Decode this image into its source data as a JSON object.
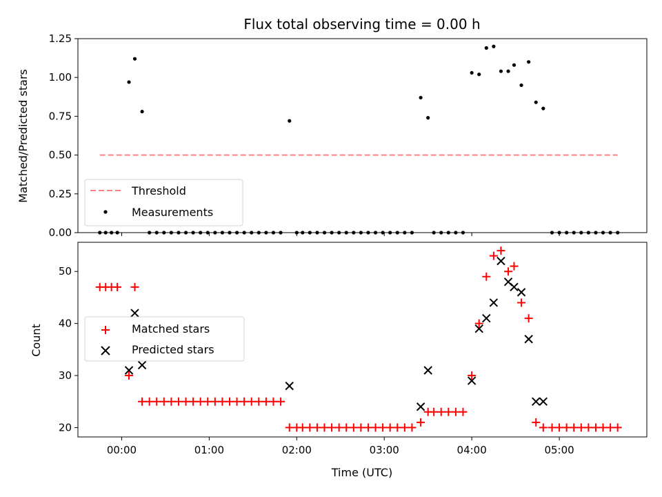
{
  "chart_data": [
    {
      "type": "scatter",
      "title": "Flux total observing time = 0.00 h",
      "xlabel": "",
      "ylabel": "Matched/Predicted stars",
      "ylim": [
        0,
        1.25
      ],
      "yticks": [
        0.0,
        0.25,
        0.5,
        0.75,
        1.0,
        1.25
      ],
      "ytick_labels": [
        "0.00",
        "0.25",
        "0.50",
        "0.75",
        "1.00",
        "1.25"
      ],
      "xlim": [
        "23:30",
        "06:00"
      ],
      "xticks": [
        "00:00",
        "01:00",
        "02:00",
        "03:00",
        "04:00",
        "05:00"
      ],
      "legend_position": "lower-left",
      "threshold": {
        "name": "Threshold",
        "color": "#ff7f7f",
        "style": "dashed",
        "y": 0.5,
        "x_range": [
          "23:45",
          "05:40"
        ]
      },
      "series": [
        {
          "name": "Measurements",
          "color": "#000000",
          "marker": "dot",
          "points": [
            [
              "23:45",
              0
            ],
            [
              "23:49",
              0
            ],
            [
              "23:53",
              0
            ],
            [
              "23:57",
              0
            ],
            [
              "00:05",
              0.97
            ],
            [
              "00:09",
              1.12
            ],
            [
              "00:14",
              0.78
            ],
            [
              "00:19",
              0
            ],
            [
              "00:24",
              0
            ],
            [
              "00:29",
              0
            ],
            [
              "00:34",
              0
            ],
            [
              "00:39",
              0
            ],
            [
              "00:44",
              0
            ],
            [
              "00:49",
              0
            ],
            [
              "00:54",
              0
            ],
            [
              "00:59",
              0
            ],
            [
              "01:04",
              0
            ],
            [
              "01:09",
              0
            ],
            [
              "01:14",
              0
            ],
            [
              "01:19",
              0
            ],
            [
              "01:24",
              0
            ],
            [
              "01:29",
              0
            ],
            [
              "01:34",
              0
            ],
            [
              "01:39",
              0
            ],
            [
              "01:44",
              0
            ],
            [
              "01:49",
              0
            ],
            [
              "01:55",
              0.72
            ],
            [
              "02:00",
              0
            ],
            [
              "02:04",
              0
            ],
            [
              "02:09",
              0
            ],
            [
              "02:14",
              0
            ],
            [
              "02:19",
              0
            ],
            [
              "02:24",
              0
            ],
            [
              "02:29",
              0
            ],
            [
              "02:34",
              0
            ],
            [
              "02:39",
              0
            ],
            [
              "02:44",
              0
            ],
            [
              "02:49",
              0
            ],
            [
              "02:54",
              0
            ],
            [
              "02:59",
              0
            ],
            [
              "03:04",
              0
            ],
            [
              "03:09",
              0
            ],
            [
              "03:14",
              0
            ],
            [
              "03:19",
              0
            ],
            [
              "03:25",
              0.87
            ],
            [
              "03:30",
              0.74
            ],
            [
              "03:34",
              0
            ],
            [
              "03:39",
              0
            ],
            [
              "03:44",
              0
            ],
            [
              "03:49",
              0
            ],
            [
              "03:54",
              0
            ],
            [
              "04:00",
              1.03
            ],
            [
              "04:05",
              1.02
            ],
            [
              "04:10",
              1.19
            ],
            [
              "04:15",
              1.2
            ],
            [
              "04:20",
              1.04
            ],
            [
              "04:25",
              1.04
            ],
            [
              "04:29",
              1.08
            ],
            [
              "04:34",
              0.95
            ],
            [
              "04:39",
              1.1
            ],
            [
              "04:44",
              0.84
            ],
            [
              "04:49",
              0.8
            ],
            [
              "04:55",
              0
            ],
            [
              "05:00",
              0
            ],
            [
              "05:05",
              0
            ],
            [
              "05:10",
              0
            ],
            [
              "05:15",
              0
            ],
            [
              "05:20",
              0
            ],
            [
              "05:25",
              0
            ],
            [
              "05:30",
              0
            ],
            [
              "05:35",
              0
            ],
            [
              "05:40",
              0
            ]
          ]
        }
      ]
    },
    {
      "type": "scatter",
      "title": "",
      "xlabel": "Time (UTC)",
      "ylabel": "Count",
      "ylim": [
        18.2,
        55.6
      ],
      "yticks": [
        20,
        30,
        40,
        50
      ],
      "ytick_labels": [
        "20",
        "30",
        "40",
        "50"
      ],
      "xlim": [
        "23:30",
        "06:00"
      ],
      "xticks": [
        "00:00",
        "01:00",
        "02:00",
        "03:00",
        "04:00",
        "05:00"
      ],
      "xtick_labels": [
        "00:00",
        "01:00",
        "02:00",
        "03:00",
        "04:00",
        "05:00"
      ],
      "legend_position": "center-left",
      "series": [
        {
          "name": "Matched stars",
          "color": "#ff0000",
          "marker": "plus",
          "points": [
            [
              "23:45",
              47
            ],
            [
              "23:49",
              47
            ],
            [
              "23:53",
              47
            ],
            [
              "23:57",
              47
            ],
            [
              "00:05",
              30
            ],
            [
              "00:09",
              47
            ],
            [
              "00:14",
              25
            ],
            [
              "00:19",
              25
            ],
            [
              "00:24",
              25
            ],
            [
              "00:29",
              25
            ],
            [
              "00:34",
              25
            ],
            [
              "00:39",
              25
            ],
            [
              "00:44",
              25
            ],
            [
              "00:49",
              25
            ],
            [
              "00:54",
              25
            ],
            [
              "00:59",
              25
            ],
            [
              "01:04",
              25
            ],
            [
              "01:09",
              25
            ],
            [
              "01:14",
              25
            ],
            [
              "01:19",
              25
            ],
            [
              "01:24",
              25
            ],
            [
              "01:29",
              25
            ],
            [
              "01:34",
              25
            ],
            [
              "01:39",
              25
            ],
            [
              "01:44",
              25
            ],
            [
              "01:49",
              25
            ],
            [
              "01:55",
              20
            ],
            [
              "02:00",
              20
            ],
            [
              "02:04",
              20
            ],
            [
              "02:09",
              20
            ],
            [
              "02:14",
              20
            ],
            [
              "02:19",
              20
            ],
            [
              "02:24",
              20
            ],
            [
              "02:29",
              20
            ],
            [
              "02:34",
              20
            ],
            [
              "02:39",
              20
            ],
            [
              "02:44",
              20
            ],
            [
              "02:49",
              20
            ],
            [
              "02:54",
              20
            ],
            [
              "02:59",
              20
            ],
            [
              "03:04",
              20
            ],
            [
              "03:09",
              20
            ],
            [
              "03:14",
              20
            ],
            [
              "03:19",
              20
            ],
            [
              "03:25",
              21
            ],
            [
              "03:30",
              23
            ],
            [
              "03:34",
              23
            ],
            [
              "03:39",
              23
            ],
            [
              "03:44",
              23
            ],
            [
              "03:49",
              23
            ],
            [
              "03:54",
              23
            ],
            [
              "04:00",
              30
            ],
            [
              "04:05",
              40
            ],
            [
              "04:10",
              49
            ],
            [
              "04:15",
              53
            ],
            [
              "04:20",
              54
            ],
            [
              "04:25",
              50
            ],
            [
              "04:29",
              51
            ],
            [
              "04:34",
              44
            ],
            [
              "04:39",
              41
            ],
            [
              "04:44",
              21
            ],
            [
              "04:49",
              20
            ],
            [
              "04:55",
              20
            ],
            [
              "05:00",
              20
            ],
            [
              "05:05",
              20
            ],
            [
              "05:10",
              20
            ],
            [
              "05:15",
              20
            ],
            [
              "05:20",
              20
            ],
            [
              "05:25",
              20
            ],
            [
              "05:30",
              20
            ],
            [
              "05:35",
              20
            ],
            [
              "05:40",
              20
            ]
          ]
        },
        {
          "name": "Predicted stars",
          "color": "#000000",
          "marker": "x",
          "points": [
            [
              "00:05",
              31
            ],
            [
              "00:09",
              42
            ],
            [
              "00:14",
              32
            ],
            [
              "01:55",
              28
            ],
            [
              "03:25",
              24
            ],
            [
              "03:30",
              31
            ],
            [
              "04:00",
              29
            ],
            [
              "04:05",
              39
            ],
            [
              "04:10",
              41
            ],
            [
              "04:15",
              44
            ],
            [
              "04:20",
              52
            ],
            [
              "04:25",
              48
            ],
            [
              "04:29",
              47
            ],
            [
              "04:34",
              46
            ],
            [
              "04:39",
              37
            ],
            [
              "04:44",
              25
            ],
            [
              "04:49",
              25
            ]
          ]
        }
      ]
    }
  ]
}
